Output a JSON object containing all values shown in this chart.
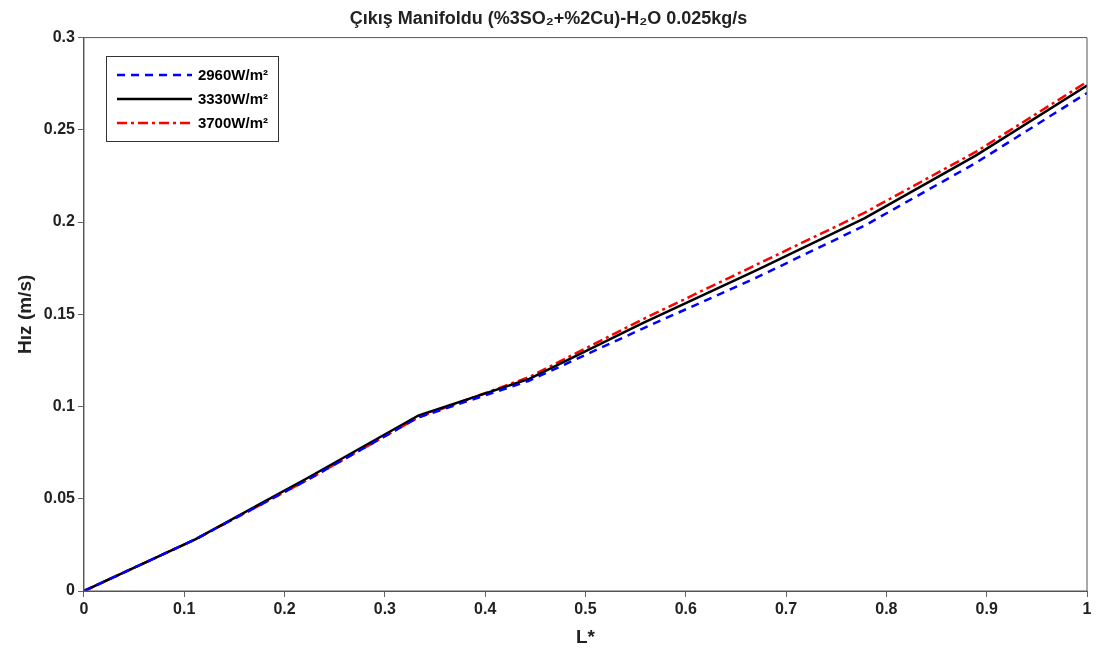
{
  "chart_data": {
    "type": "line",
    "title": "Çıkış Manifoldu (%3SO₂+%2Cu)-H₂O 0.025kg/s",
    "xlabel": "L*",
    "ylabel": "Hız (m/s)",
    "x": [
      0,
      0.111,
      0.222,
      0.333,
      0.444,
      0.556,
      0.667,
      0.778,
      0.889,
      1
    ],
    "series": [
      {
        "name": "2960W/m²",
        "color": "#0000ff",
        "line_style": "dashed",
        "values": [
          0,
          0.028,
          0.06,
          0.094,
          0.114,
          0.142,
          0.169,
          0.198,
          0.232,
          0.27
        ]
      },
      {
        "name": "3330W/m²",
        "color": "#000000",
        "line_style": "solid",
        "values": [
          0,
          0.028,
          0.061,
          0.095,
          0.115,
          0.145,
          0.173,
          0.202,
          0.236,
          0.274
        ]
      },
      {
        "name": "3700W/m²",
        "color": "#ff0000",
        "line_style": "dashdot",
        "values": [
          0,
          0.028,
          0.06,
          0.094,
          0.116,
          0.147,
          0.176,
          0.205,
          0.238,
          0.276
        ]
      }
    ],
    "xlim": [
      0,
      1
    ],
    "xticks": [
      0,
      0.1,
      0.2,
      0.3,
      0.4,
      0.5,
      0.6,
      0.7,
      0.8,
      0.9,
      1
    ],
    "ylim": [
      0,
      0.3
    ],
    "yticks": [
      0,
      0.05,
      0.1,
      0.15,
      0.2,
      0.25,
      0.3
    ],
    "grid": false,
    "legend": "top left",
    "marker": "none"
  }
}
